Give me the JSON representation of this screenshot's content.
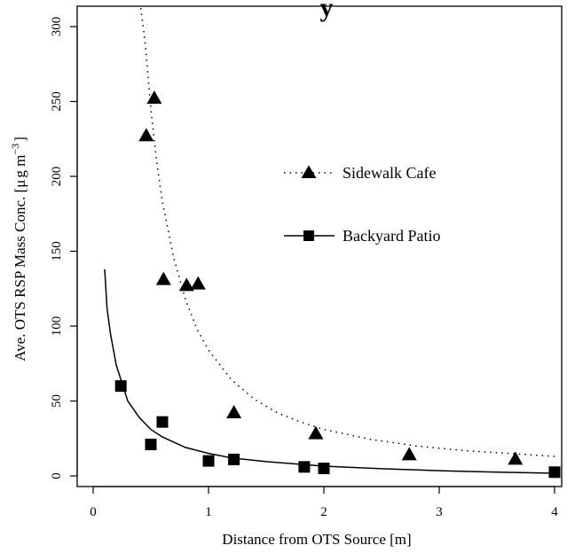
{
  "chart_data": {
    "type": "scatter",
    "title": "y",
    "xlabel": "Distance from OTS Source [m]",
    "ylabel_main": "Ave. OTS RSP Mass Conc. [",
    "ylabel_mu": "μ",
    "ylabel_unit": "g m",
    "ylabel_sup": "−3",
    "ylabel_close": "]",
    "xlim": [
      0,
      4
    ],
    "ylim": [
      0,
      300
    ],
    "x_ticks": [
      0,
      1,
      2,
      3,
      4
    ],
    "y_ticks": [
      0,
      50,
      100,
      150,
      200,
      250,
      300
    ],
    "x_tick_labels": [
      "0",
      "1",
      "2",
      "3",
      "4"
    ],
    "y_tick_labels": [
      "0",
      "50",
      "100",
      "150",
      "200",
      "250",
      "300"
    ],
    "grid": false,
    "legend_position": "right",
    "series": [
      {
        "name": "Sidewalk Cafe",
        "marker": "triangle",
        "line_style": "dotted",
        "color": "#000000",
        "points": [
          {
            "x": 0.46,
            "y": 227
          },
          {
            "x": 0.53,
            "y": 252
          },
          {
            "x": 0.61,
            "y": 131
          },
          {
            "x": 0.81,
            "y": 127
          },
          {
            "x": 0.91,
            "y": 128
          },
          {
            "x": 1.22,
            "y": 42
          },
          {
            "x": 1.93,
            "y": 28
          },
          {
            "x": 2.74,
            "y": 14
          },
          {
            "x": 3.66,
            "y": 11
          }
        ],
        "fit_curve": [
          {
            "x": 0.4,
            "y": 320
          },
          {
            "x": 0.45,
            "y": 290
          },
          {
            "x": 0.5,
            "y": 245
          },
          {
            "x": 0.55,
            "y": 210
          },
          {
            "x": 0.6,
            "y": 183
          },
          {
            "x": 0.7,
            "y": 145
          },
          {
            "x": 0.8,
            "y": 118
          },
          {
            "x": 0.9,
            "y": 98
          },
          {
            "x": 1.0,
            "y": 84
          },
          {
            "x": 1.2,
            "y": 64
          },
          {
            "x": 1.4,
            "y": 51
          },
          {
            "x": 1.6,
            "y": 42
          },
          {
            "x": 1.8,
            "y": 36
          },
          {
            "x": 2.0,
            "y": 31
          },
          {
            "x": 2.4,
            "y": 24.5
          },
          {
            "x": 2.8,
            "y": 20
          },
          {
            "x": 3.2,
            "y": 17
          },
          {
            "x": 3.6,
            "y": 15
          },
          {
            "x": 4.0,
            "y": 13
          }
        ]
      },
      {
        "name": "Backyard Patio",
        "marker": "square",
        "line_style": "solid",
        "color": "#000000",
        "points": [
          {
            "x": 0.24,
            "y": 60
          },
          {
            "x": 0.5,
            "y": 21
          },
          {
            "x": 0.6,
            "y": 36
          },
          {
            "x": 1.0,
            "y": 10
          },
          {
            "x": 1.22,
            "y": 11
          },
          {
            "x": 1.83,
            "y": 6
          },
          {
            "x": 2.0,
            "y": 5
          },
          {
            "x": 4.0,
            "y": 2.5
          }
        ],
        "fit_curve": [
          {
            "x": 0.1,
            "y": 138
          },
          {
            "x": 0.12,
            "y": 112
          },
          {
            "x": 0.15,
            "y": 95
          },
          {
            "x": 0.2,
            "y": 74
          },
          {
            "x": 0.25,
            "y": 62
          },
          {
            "x": 0.3,
            "y": 50
          },
          {
            "x": 0.4,
            "y": 39
          },
          {
            "x": 0.5,
            "y": 31
          },
          {
            "x": 0.6,
            "y": 26
          },
          {
            "x": 0.8,
            "y": 19
          },
          {
            "x": 1.0,
            "y": 15
          },
          {
            "x": 1.2,
            "y": 12
          },
          {
            "x": 1.5,
            "y": 9.5
          },
          {
            "x": 2.0,
            "y": 6.5
          },
          {
            "x": 2.5,
            "y": 4.8
          },
          {
            "x": 3.0,
            "y": 3.5
          },
          {
            "x": 3.5,
            "y": 2.5
          },
          {
            "x": 4.0,
            "y": 1.8
          }
        ]
      }
    ]
  }
}
